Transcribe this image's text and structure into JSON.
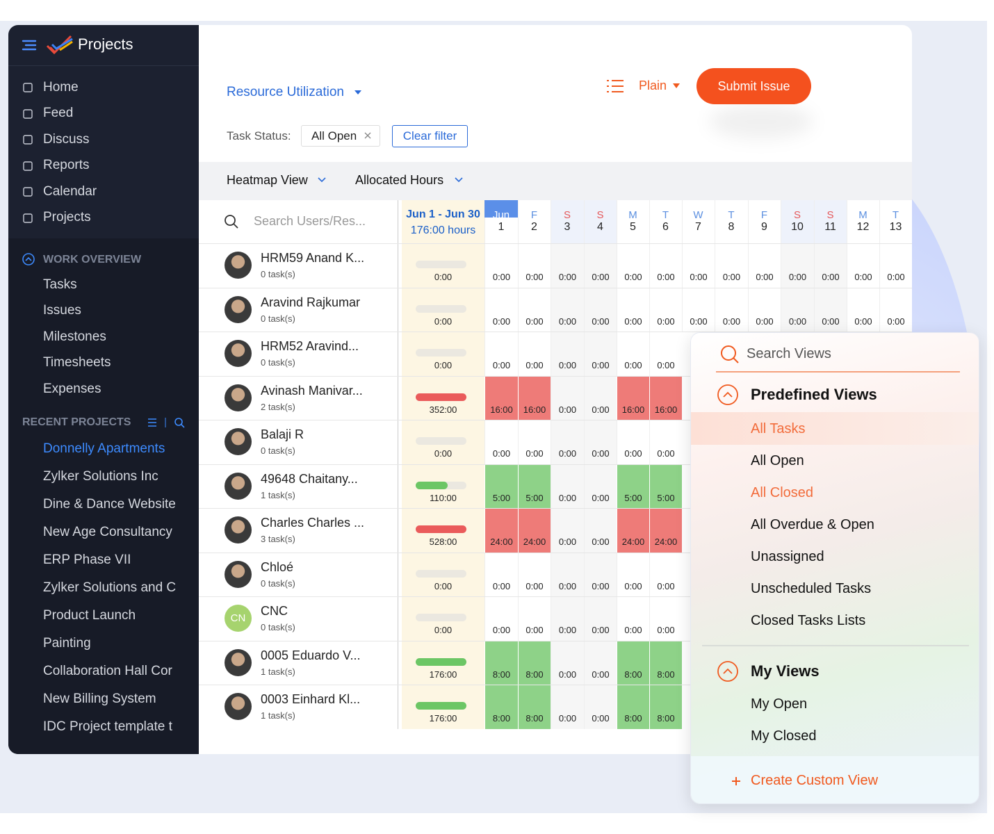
{
  "sidebar": {
    "app_title": "Projects",
    "nav": [
      "Home",
      "Feed",
      "Discuss",
      "Reports",
      "Calendar",
      "Projects"
    ],
    "work_overview": {
      "title": "WORK OVERVIEW",
      "items": [
        "Tasks",
        "Issues",
        "Milestones",
        "Timesheets",
        "Expenses"
      ]
    },
    "recent_projects": {
      "title": "RECENT PROJECTS",
      "items": [
        "Donnelly Apartments",
        "Zylker Solutions Inc",
        "Dine & Dance Website",
        "New Age Consultancy",
        "ERP Phase VII",
        "Zylker Solutions and C",
        "Product Launch",
        "Painting",
        "Collaboration Hall Cor",
        "New Billing System",
        "IDC Project template t"
      ]
    }
  },
  "header": {
    "view": "Resource Utilization",
    "layout": "Plain",
    "submit": "Submit Issue",
    "filter_label": "Task Status:",
    "filter_chip": "All Open",
    "clear": "Clear filter"
  },
  "toolbar": {
    "view_mode": "Heatmap View",
    "measure": "Allocated Hours"
  },
  "grid": {
    "search": "Search Users/Res...",
    "summary": {
      "range": "Jun 1 - Jun 30",
      "hours": "176:00 hours"
    },
    "days": [
      {
        "top": "Jun",
        "num": "1"
      },
      {
        "top": "F",
        "num": "2"
      },
      {
        "top": "S",
        "num": "3"
      },
      {
        "top": "S",
        "num": "4"
      },
      {
        "top": "M",
        "num": "5"
      },
      {
        "top": "T",
        "num": "6"
      },
      {
        "top": "W",
        "num": "7"
      },
      {
        "top": "T",
        "num": "8"
      },
      {
        "top": "F",
        "num": "9"
      },
      {
        "top": "S",
        "num": "10"
      },
      {
        "top": "S",
        "num": "11"
      },
      {
        "top": "M",
        "num": "12"
      },
      {
        "top": "T",
        "num": "13"
      }
    ],
    "rows": [
      {
        "name": "HRM59 Anand K...",
        "tasks": "0 task(s)",
        "total": "0:00",
        "cells": [
          "0:00",
          "0:00",
          "0:00",
          "0:00",
          "0:00",
          "0:00",
          "0:00",
          "0:00",
          "0:00",
          "0:00",
          "0:00",
          "0:00",
          "0:00"
        ]
      },
      {
        "name": "Aravind Rajkumar",
        "tasks": "0 task(s)",
        "total": "0:00",
        "cells": [
          "0:00",
          "0:00",
          "0:00",
          "0:00",
          "0:00",
          "0:00",
          "0:00",
          "0:00",
          "0:00",
          "0:00",
          "0:00",
          "0:00",
          "0:00"
        ]
      },
      {
        "name": "HRM52 Aravind...",
        "tasks": "0 task(s)",
        "total": "0:00",
        "cells": [
          "0:00",
          "0:00",
          "0:00",
          "0:00",
          "0:00",
          "0:00"
        ]
      },
      {
        "name": "Avinash Manivar...",
        "tasks": "2 task(s)",
        "total": "352:00",
        "cells": [
          "16:00",
          "16:00",
          "0:00",
          "0:00",
          "16:00",
          "16:00"
        ]
      },
      {
        "name": "Balaji R",
        "tasks": "0 task(s)",
        "total": "0:00",
        "cells": [
          "0:00",
          "0:00",
          "0:00",
          "0:00",
          "0:00",
          "0:00"
        ]
      },
      {
        "name": "49648 Chaitany...",
        "tasks": "1 task(s)",
        "total": "110:00",
        "cells": [
          "5:00",
          "5:00",
          "0:00",
          "0:00",
          "5:00",
          "5:00"
        ]
      },
      {
        "name": "Charles Charles ...",
        "tasks": "3 task(s)",
        "total": "528:00",
        "cells": [
          "24:00",
          "24:00",
          "0:00",
          "0:00",
          "24:00",
          "24:00"
        ]
      },
      {
        "name": "Chloé",
        "tasks": "0 task(s)",
        "total": "0:00",
        "cells": [
          "0:00",
          "0:00",
          "0:00",
          "0:00",
          "0:00",
          "0:00"
        ]
      },
      {
        "name": "CNC",
        "initials": "CN",
        "tasks": "0 task(s)",
        "total": "0:00",
        "cells": [
          "0:00",
          "0:00",
          "0:00",
          "0:00",
          "0:00",
          "0:00"
        ]
      },
      {
        "name": "0005 Eduardo V...",
        "tasks": "1 task(s)",
        "total": "176:00",
        "cells": [
          "8:00",
          "8:00",
          "0:00",
          "0:00",
          "8:00",
          "8:00"
        ]
      },
      {
        "name": "0003 Einhard Kl...",
        "tasks": "1 task(s)",
        "total": "176:00",
        "cells": [
          "8:00",
          "8:00",
          "0:00",
          "0:00",
          "8:00",
          "8:00"
        ]
      }
    ]
  },
  "views_panel": {
    "search": "Search Views",
    "predefined": {
      "title": "Predefined Views",
      "items": [
        "All Tasks",
        "All Open",
        "All Closed",
        "All Overdue & Open",
        "Unassigned",
        "Unscheduled Tasks",
        "Closed Tasks Lists"
      ]
    },
    "mine": {
      "title": "My Views",
      "items": [
        "My Open",
        "My Closed"
      ]
    },
    "create": "Create Custom View"
  }
}
